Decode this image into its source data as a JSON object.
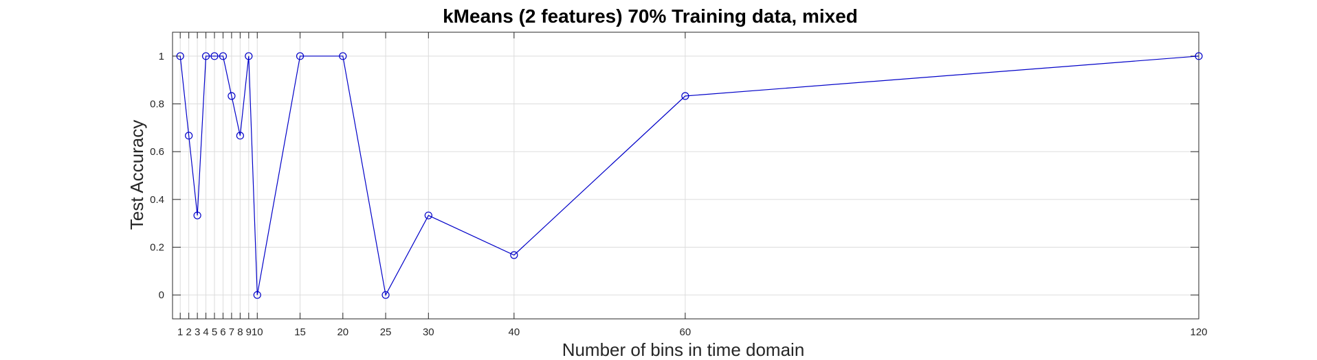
{
  "chart_data": {
    "type": "line",
    "title": "kMeans (2 features) 70% Training data, mixed",
    "xlabel": "Number of bins in time domain",
    "ylabel": "Test Accuracy",
    "x": [
      1,
      2,
      3,
      4,
      5,
      6,
      7,
      8,
      9,
      10,
      15,
      20,
      25,
      30,
      40,
      60,
      120
    ],
    "series": [
      {
        "values": [
          1,
          0.667,
          0.333,
          1,
          1,
          1,
          0.833,
          0.667,
          1,
          0,
          1,
          1,
          0,
          0.333,
          0.167,
          0.833,
          1
        ],
        "color": "#0000c8",
        "marker": "circle"
      }
    ],
    "xticks": [
      1,
      2,
      3,
      4,
      5,
      6,
      7,
      8,
      9,
      10,
      15,
      20,
      25,
      30,
      40,
      60,
      120
    ],
    "xtick_labels": [
      "1",
      "2",
      "3",
      "4",
      "5",
      "6",
      "7",
      "8",
      "9",
      "10",
      "15",
      "20",
      "25",
      "30",
      "40",
      "60",
      "120"
    ],
    "yticks": [
      0,
      0.2,
      0.4,
      0.6,
      0.8,
      1
    ],
    "ytick_labels": [
      "0",
      "0.2",
      "0.4",
      "0.6",
      "0.8",
      "1"
    ],
    "xlim": [
      0.1,
      120
    ],
    "ylim": [
      -0.1,
      1.1
    ],
    "grid": true,
    "legend": false
  }
}
